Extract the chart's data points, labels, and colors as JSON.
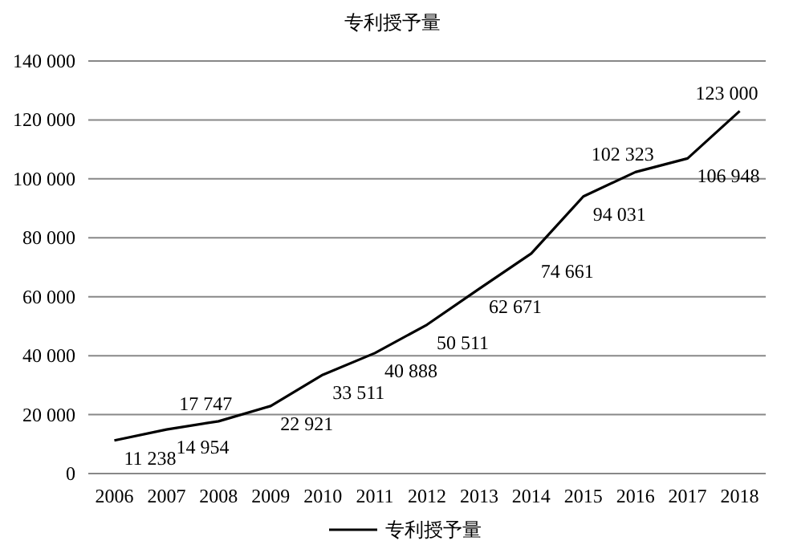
{
  "chart_data": {
    "type": "line",
    "title": "专利授予量",
    "categories": [
      "2006",
      "2007",
      "2008",
      "2009",
      "2010",
      "2011",
      "2012",
      "2013",
      "2014",
      "2015",
      "2016",
      "2017",
      "2018"
    ],
    "series": [
      {
        "name": "专利授予量",
        "color": "#000000",
        "values": [
          11238,
          14954,
          17747,
          22921,
          33511,
          40888,
          50511,
          62671,
          74661,
          94031,
          102323,
          106948,
          123000
        ]
      }
    ],
    "ylim": [
      0,
      140000
    ],
    "yticks": [
      {
        "value": 0,
        "label": "0"
      },
      {
        "value": 20000,
        "label": "20 000"
      },
      {
        "value": 40000,
        "label": "40 000"
      },
      {
        "value": 60000,
        "label": "60 000"
      },
      {
        "value": 80000,
        "label": "80 000"
      },
      {
        "value": 100000,
        "label": "100 000"
      },
      {
        "value": 120000,
        "label": "120 000"
      },
      {
        "value": 140000,
        "label": "140 000"
      }
    ],
    "grid": "y",
    "data_labels": true,
    "legend": "bottom",
    "marker": "none",
    "line_style": "solid"
  }
}
